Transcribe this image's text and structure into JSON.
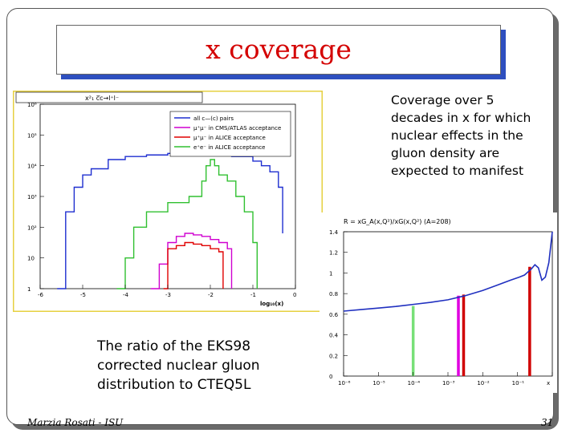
{
  "slide": {
    "title": "x coverage",
    "coverage_note": "Coverage over 5\ndecades in x for which\nnuclear effects in the\ngluon density are\nexpected to manifest",
    "ratio_caption": "The ratio of the EKS98\ncorrected nuclear gluon\ndistribution to CTEQ5L",
    "footer_author": "Marzia Rosati - ISU",
    "page_number": "31"
  },
  "chart_data": [
    {
      "type": "line",
      "title": "x²₁  c̅c→l⁺l⁻",
      "xlabel": "log₁₀(x)",
      "ylabel": "",
      "xlim": [
        -6,
        0
      ],
      "ylim_log10": [
        0,
        6
      ],
      "y_scale": "log",
      "x_ticks": [
        "-6",
        "-5",
        "-4",
        "-3",
        "-2",
        "-1",
        "0"
      ],
      "y_ticks": [
        "1",
        "10",
        "10²",
        "10³",
        "10⁴",
        "10⁵",
        "10⁶"
      ],
      "y_tick_values_log10": [
        0,
        1,
        2,
        3,
        4,
        5,
        6
      ],
      "legend_position": "top-right",
      "series": [
        {
          "name": "all c—(c) pairs",
          "color": "#1f2fd0",
          "x": [
            -5.6,
            -5.4,
            -5.2,
            -5.0,
            -4.8,
            -4.4,
            -4.0,
            -3.5,
            -3.0,
            -2.5,
            -2.0,
            -1.5,
            -1.0,
            -0.8,
            -0.6,
            -0.4,
            -0.3
          ],
          "y_log10": [
            0.0,
            2.5,
            3.3,
            3.7,
            3.9,
            4.2,
            4.3,
            4.35,
            4.4,
            4.4,
            4.35,
            4.3,
            4.15,
            4.0,
            3.8,
            3.3,
            1.8
          ]
        },
        {
          "name": "μ⁺μ⁻ in CMS/ATLAS acceptance",
          "color": "#d000d0",
          "x": [
            -3.4,
            -3.2,
            -3.0,
            -2.8,
            -2.6,
            -2.4,
            -2.2,
            -2.0,
            -1.8,
            -1.6,
            -1.5
          ],
          "y_log10": [
            0.0,
            0.8,
            1.5,
            1.7,
            1.8,
            1.75,
            1.7,
            1.6,
            1.5,
            1.3,
            0.0
          ]
        },
        {
          "name": "μ⁺μ⁻ in ALICE acceptance",
          "color": "#e00000",
          "x": [
            -3.1,
            -3.0,
            -2.8,
            -2.6,
            -2.4,
            -2.2,
            -2.0,
            -1.8,
            -1.7
          ],
          "y_log10": [
            0.0,
            1.3,
            1.4,
            1.5,
            1.45,
            1.4,
            1.3,
            1.2,
            0.0
          ]
        },
        {
          "name": "e⁺e⁻ in ALICE acceptance",
          "color": "#30c030",
          "x": [
            -4.2,
            -4.0,
            -3.8,
            -3.5,
            -3.0,
            -2.5,
            -2.2,
            -2.1,
            -2.0,
            -1.9,
            -1.8,
            -1.6,
            -1.4,
            -1.2,
            -1.0,
            -0.9
          ],
          "y_log10": [
            0.0,
            1.0,
            2.0,
            2.5,
            2.8,
            3.0,
            3.5,
            4.0,
            4.2,
            4.0,
            3.7,
            3.5,
            3.0,
            2.5,
            1.5,
            0.0
          ]
        }
      ]
    },
    {
      "type": "line",
      "title": "R = xG_A(x,Q²)/xG(x,Q²) (A=208)",
      "xlabel": "x",
      "ylabel": "",
      "xlim_log10": [
        -6,
        0
      ],
      "ylim": [
        0,
        1.4
      ],
      "x_scale": "log",
      "x_ticks": [
        "10⁻⁶",
        "10⁻⁵",
        "10⁻⁴",
        "10⁻³",
        "10⁻²",
        "10⁻¹",
        "x"
      ],
      "y_ticks": [
        "0",
        "0.2",
        "0.4",
        "0.6",
        "0.8",
        "1",
        "1.2",
        "1.4"
      ],
      "y_tick_values": [
        0,
        0.2,
        0.4,
        0.6,
        0.8,
        1.0,
        1.2,
        1.4
      ],
      "series": [
        {
          "color": "#2030c0",
          "x_log10": [
            -6,
            -5.5,
            -5,
            -4.5,
            -4,
            -3.5,
            -3,
            -2.5,
            -2,
            -1.6,
            -1.2,
            -0.95,
            -0.8,
            -0.6,
            -0.5,
            -0.4,
            -0.3,
            -0.2,
            -0.1,
            0
          ],
          "y": [
            0.63,
            0.645,
            0.66,
            0.675,
            0.695,
            0.715,
            0.74,
            0.78,
            0.83,
            0.88,
            0.93,
            0.96,
            0.98,
            1.04,
            1.08,
            1.05,
            0.93,
            0.96,
            1.1,
            1.4
          ]
        }
      ],
      "markers": [
        {
          "color": "#77e077",
          "x_log10": -4.0,
          "y_top": 0.68
        },
        {
          "color": "#e000e0",
          "x_log10": -2.7,
          "y_top": 0.78
        },
        {
          "color": "#d00000",
          "x_log10": -2.55,
          "y_top": 0.79
        },
        {
          "color": "#d00000",
          "x_log10": -0.65,
          "y_top": 1.06
        }
      ]
    }
  ]
}
